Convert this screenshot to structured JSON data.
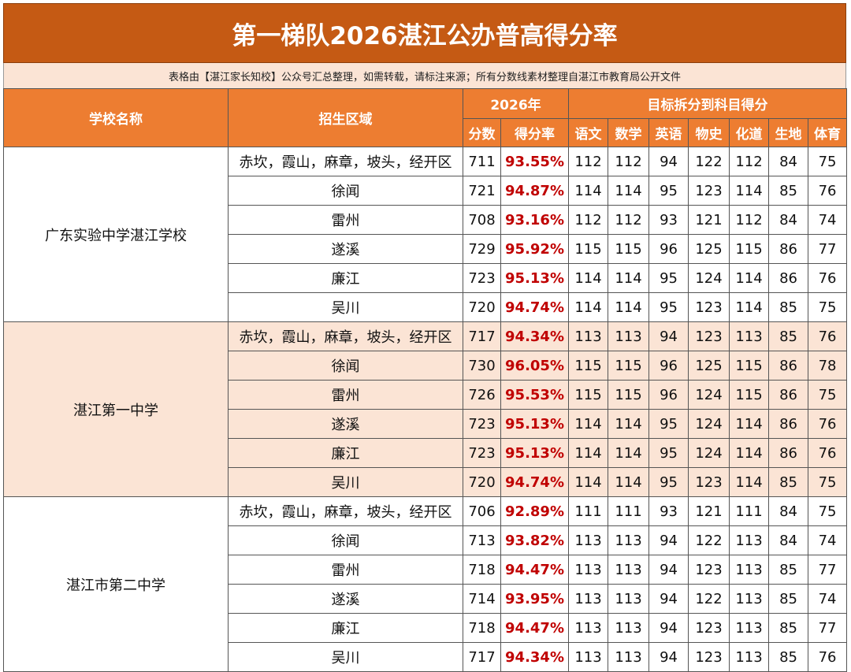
{
  "title": "第一梯队2026湛江公办普高得分率",
  "note": "表格由【湛江家长知校】公众号汇总整理，如需转载，请标注来源；所有分数线素材整理自湛江市教育局公开文件",
  "header": {
    "school": "学校名称",
    "area": "招生区域",
    "year": "2026年",
    "breakdown": "目标拆分到科目得分",
    "score": "分数",
    "rate": "得分率",
    "subjects": [
      "语文",
      "数学",
      "英语",
      "物史",
      "化道",
      "生地",
      "体育"
    ]
  },
  "schools": [
    {
      "name": "广东实验中学湛江学校",
      "rows": [
        {
          "area": "赤坎，霞山，麻章，坡头，经开区",
          "score": "711",
          "rate": "93.55%",
          "subjects": [
            "112",
            "112",
            "94",
            "122",
            "112",
            "84",
            "75"
          ]
        },
        {
          "area": "徐闻",
          "score": "721",
          "rate": "94.87%",
          "subjects": [
            "114",
            "114",
            "95",
            "123",
            "114",
            "85",
            "76"
          ]
        },
        {
          "area": "雷州",
          "score": "708",
          "rate": "93.16%",
          "subjects": [
            "112",
            "112",
            "93",
            "121",
            "112",
            "84",
            "74"
          ]
        },
        {
          "area": "遂溪",
          "score": "729",
          "rate": "95.92%",
          "subjects": [
            "115",
            "115",
            "96",
            "125",
            "115",
            "86",
            "77"
          ]
        },
        {
          "area": "廉江",
          "score": "723",
          "rate": "95.13%",
          "subjects": [
            "114",
            "114",
            "95",
            "124",
            "114",
            "86",
            "76"
          ]
        },
        {
          "area": "吴川",
          "score": "720",
          "rate": "94.74%",
          "subjects": [
            "114",
            "114",
            "95",
            "123",
            "114",
            "85",
            "75"
          ]
        }
      ]
    },
    {
      "name": "湛江第一中学",
      "rows": [
        {
          "area": "赤坎，霞山，麻章，坡头，经开区",
          "score": "717",
          "rate": "94.34%",
          "subjects": [
            "113",
            "113",
            "94",
            "123",
            "113",
            "85",
            "76"
          ]
        },
        {
          "area": "徐闻",
          "score": "730",
          "rate": "96.05%",
          "subjects": [
            "115",
            "115",
            "96",
            "125",
            "115",
            "86",
            "78"
          ]
        },
        {
          "area": "雷州",
          "score": "726",
          "rate": "95.53%",
          "subjects": [
            "115",
            "115",
            "96",
            "124",
            "115",
            "86",
            "75"
          ]
        },
        {
          "area": "遂溪",
          "score": "723",
          "rate": "95.13%",
          "subjects": [
            "114",
            "114",
            "95",
            "124",
            "114",
            "86",
            "76"
          ]
        },
        {
          "area": "廉江",
          "score": "723",
          "rate": "95.13%",
          "subjects": [
            "114",
            "114",
            "95",
            "124",
            "114",
            "86",
            "76"
          ]
        },
        {
          "area": "吴川",
          "score": "720",
          "rate": "94.74%",
          "subjects": [
            "114",
            "114",
            "95",
            "123",
            "114",
            "85",
            "75"
          ]
        }
      ]
    },
    {
      "name": "湛江市第二中学",
      "rows": [
        {
          "area": "赤坎，霞山，麻章，坡头，经开区",
          "score": "706",
          "rate": "92.89%",
          "subjects": [
            "111",
            "111",
            "93",
            "121",
            "111",
            "84",
            "75"
          ]
        },
        {
          "area": "徐闻",
          "score": "713",
          "rate": "93.82%",
          "subjects": [
            "113",
            "113",
            "94",
            "122",
            "113",
            "84",
            "74"
          ]
        },
        {
          "area": "雷州",
          "score": "718",
          "rate": "94.47%",
          "subjects": [
            "113",
            "113",
            "94",
            "123",
            "113",
            "85",
            "77"
          ]
        },
        {
          "area": "遂溪",
          "score": "714",
          "rate": "93.95%",
          "subjects": [
            "113",
            "113",
            "94",
            "122",
            "113",
            "85",
            "74"
          ]
        },
        {
          "area": "廉江",
          "score": "718",
          "rate": "94.47%",
          "subjects": [
            "113",
            "113",
            "94",
            "123",
            "113",
            "85",
            "77"
          ]
        },
        {
          "area": "吴川",
          "score": "717",
          "rate": "94.34%",
          "subjects": [
            "113",
            "113",
            "94",
            "123",
            "113",
            "85",
            "76"
          ]
        }
      ]
    }
  ]
}
